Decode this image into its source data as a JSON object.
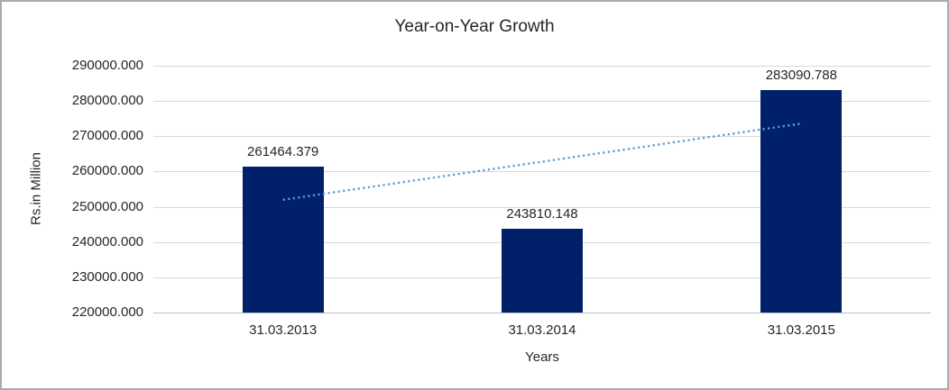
{
  "chart_data": {
    "type": "bar",
    "title": "Year-on-Year Growth",
    "xlabel": "Years",
    "ylabel": "Rs.in Million",
    "categories": [
      "31.03.2013",
      "31.03.2014",
      "31.03.2015"
    ],
    "values": [
      261464.379,
      243810.148,
      283090.788
    ],
    "data_labels": [
      "261464.379",
      "243810.148",
      "283090.788"
    ],
    "y_ticks": [
      "290000.000",
      "280000.000",
      "270000.000",
      "260000.000",
      "250000.000",
      "240000.000",
      "230000.000",
      "220000.000"
    ],
    "y_tick_values": [
      290000,
      280000,
      270000,
      260000,
      250000,
      240000,
      230000,
      220000
    ],
    "ylim": [
      220000,
      290000
    ],
    "grid": true,
    "legend": "none",
    "bar_color": "#002169",
    "gridline_color": "#d9d9d9",
    "axis_line_color": "#bfbfbf",
    "trendline": {
      "style": "dotted",
      "color": "#5b9bd5",
      "start_value": 251975,
      "end_value": 273602
    }
  }
}
